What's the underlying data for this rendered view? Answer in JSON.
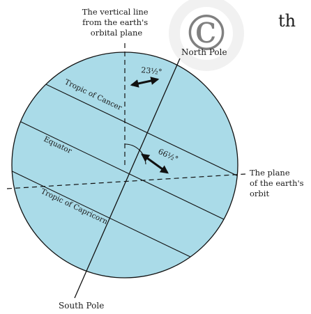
{
  "watermark_text": "©",
  "header_fragment": "th",
  "labels": {
    "vertical_line_1": "The vertical line",
    "vertical_line_2": "from the earth's",
    "vertical_line_3": "orbital plane",
    "north_pole": "North Pole",
    "south_pole": "South Pole",
    "tropic_cancer": "Tropic of Cancer",
    "equator": "Equator",
    "tropic_capricorn": "Tropic of Capricorn",
    "orbit_plane_1": "The plane",
    "orbit_plane_2": "of the earth's",
    "orbit_plane_3": "orbit",
    "angle_small": "23½°",
    "angle_large": "66½°"
  },
  "colors": {
    "globe_fill": "#aadbe8",
    "line": "#111111",
    "watermark": "#e8e8e8"
  }
}
